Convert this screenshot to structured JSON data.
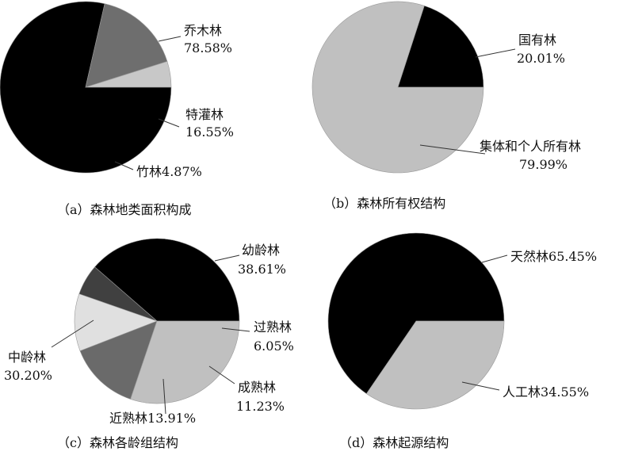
{
  "chart_data": [
    {
      "type": "pie",
      "title": "（a）森林地类面积构成",
      "slices": [
        {
          "name": "乔木林",
          "value_label": "78.58%",
          "value": 78.58,
          "color": "#000000"
        },
        {
          "name": "特灌林",
          "value_label": "16.55%",
          "value": 16.55,
          "color": "#6e6e6e"
        },
        {
          "name": "竹林",
          "value_label": "4.87%",
          "value": 4.87,
          "color": "#c8c8c8"
        }
      ]
    },
    {
      "type": "pie",
      "title": "（b）森林所有权结构",
      "slices": [
        {
          "name": "国有林",
          "value_label": "20.01%",
          "value": 20.01,
          "color": "#000000"
        },
        {
          "name": "集体和个人所有林",
          "value_label": "79.99%",
          "value": 79.99,
          "color": "#c0c0c0"
        }
      ]
    },
    {
      "type": "pie",
      "title": "（c）森林各龄组结构",
      "slices": [
        {
          "name": "幼龄林",
          "value_label": "38.61%",
          "value": 38.61,
          "color": "#000000"
        },
        {
          "name": "过熟林",
          "value_label": "6.05%",
          "value": 6.05,
          "color": "#404040"
        },
        {
          "name": "成熟林",
          "value_label": "11.23%",
          "value": 11.23,
          "color": "#e0e0e0"
        },
        {
          "name": "近熟林",
          "value_label": "13.91%",
          "value": 13.91,
          "color": "#6a6a6a"
        },
        {
          "name": "中龄林",
          "value_label": "30.20%",
          "value": 30.2,
          "color": "#c0c0c0"
        }
      ]
    },
    {
      "type": "pie",
      "title": "（d）森林起源结构",
      "slices": [
        {
          "name": "天然林",
          "value_label": "65.45%",
          "value": 65.45,
          "color": "#000000"
        },
        {
          "name": "人工林",
          "value_label": "34.55%",
          "value": 34.55,
          "color": "#c0c0c0"
        }
      ]
    }
  ]
}
